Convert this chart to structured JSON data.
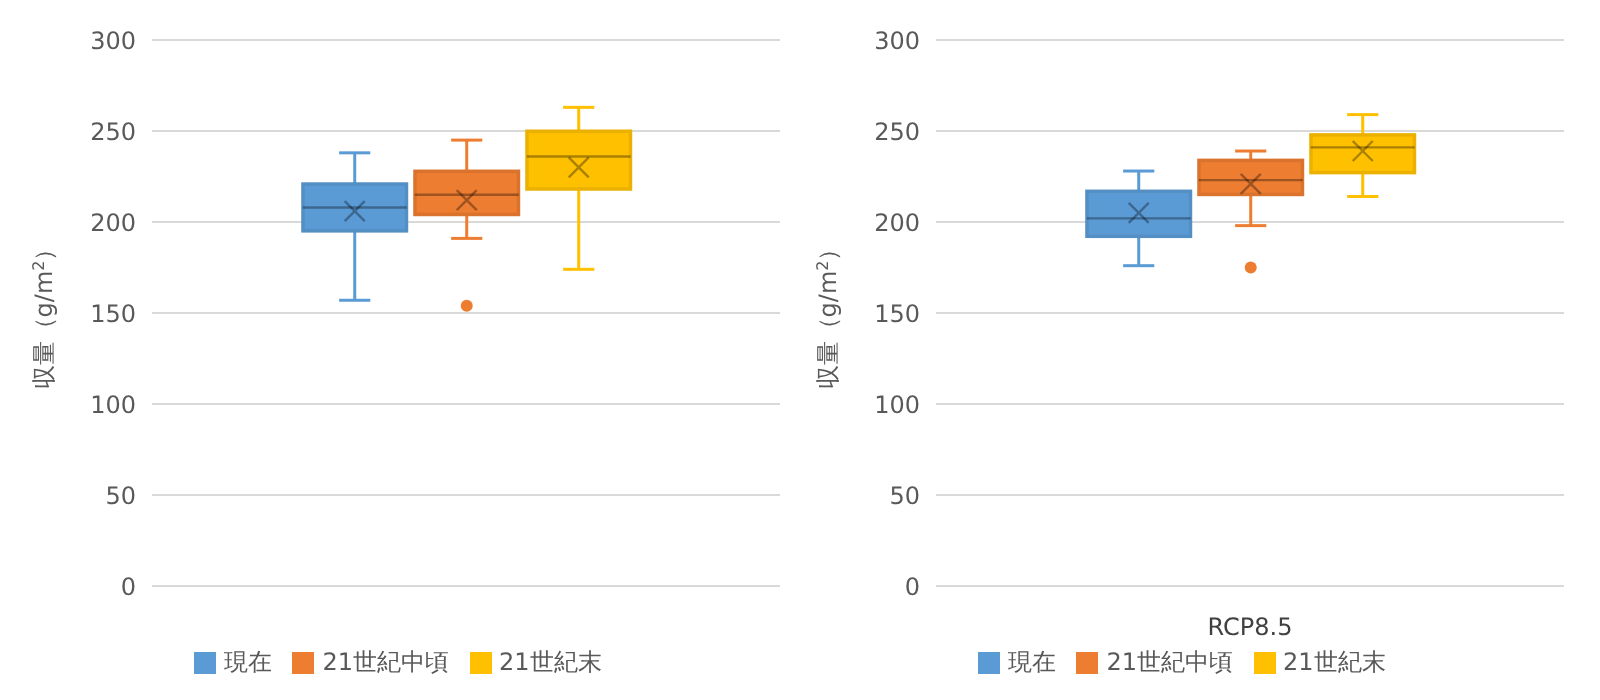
{
  "chart_data": [
    {
      "type": "box",
      "categories": [
        null
      ],
      "ylabel": "収量（g/m$^{2}$）",
      "ylim": [
        0,
        300
      ],
      "yticks": [
        0,
        50,
        100,
        150,
        200,
        250,
        300
      ],
      "grid": "y",
      "legend": "bottom",
      "series": [
        {
          "name": "現在",
          "color": "#5b9bd5",
          "boxes": [
            {
              "low": 157,
              "q1": 195,
              "median": 208,
              "q3": 221,
              "high": 238,
              "mean": 206
            }
          ]
        },
        {
          "name": "21世紀中頃",
          "color": "#ed7d31",
          "boxes": [
            {
              "low": 191,
              "q1": 204,
              "median": 215,
              "q3": 228,
              "high": 245,
              "mean": 212,
              "outliers": [
                154
              ]
            }
          ]
        },
        {
          "name": "21世紀末",
          "color": "#ffc000",
          "boxes": [
            {
              "low": 174,
              "q1": 218,
              "median": 236,
              "q3": 250,
              "high": 263,
              "mean": 230
            }
          ]
        }
      ]
    },
    {
      "type": "box",
      "categories": [
        "RCP8.5"
      ],
      "ylabel": "収量（g/m$^{2}$）",
      "ylim": [
        0,
        300
      ],
      "yticks": [
        0,
        50,
        100,
        150,
        200,
        250,
        300
      ],
      "grid": "y",
      "legend": "bottom",
      "series": [
        {
          "name": "現在",
          "color": "#5b9bd5",
          "boxes": [
            {
              "low": 176,
              "q1": 192,
              "median": 202,
              "q3": 217,
              "high": 228,
              "mean": 205
            }
          ]
        },
        {
          "name": "21世紀中頃",
          "color": "#ed7d31",
          "boxes": [
            {
              "low": 198,
              "q1": 215,
              "median": 223,
              "q3": 234,
              "high": 239,
              "mean": 221,
              "outliers": [
                175
              ]
            }
          ]
        },
        {
          "name": "21世紀末",
          "color": "#ffc000",
          "boxes": [
            {
              "low": 214,
              "q1": 227,
              "median": 241,
              "q3": 248,
              "high": 259,
              "mean": 239
            }
          ]
        }
      ]
    }
  ]
}
